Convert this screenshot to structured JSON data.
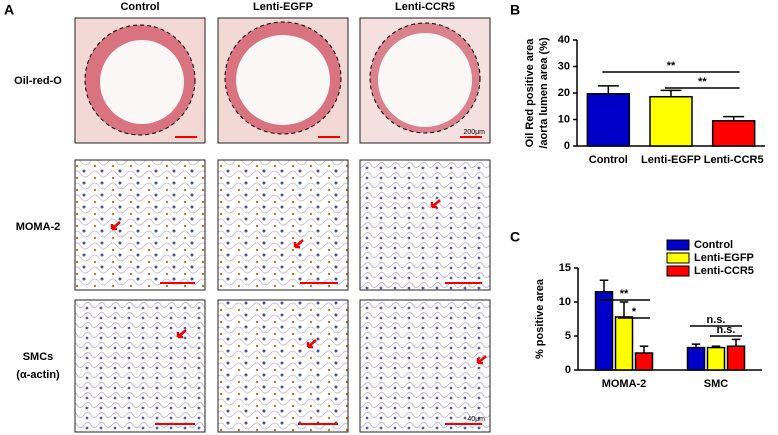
{
  "panel_labels": [
    "A",
    "B",
    "C"
  ],
  "image_grid": {
    "columns": [
      "Control",
      "Lenti-EGFP",
      "Lenti-CCR5"
    ],
    "rows": [
      [
        "Oil-red-O"
      ],
      [
        "MOMA-2"
      ],
      [
        "SMCs",
        "(α-actin)"
      ]
    ],
    "scale_labels": [
      "200μm",
      "40μm"
    ]
  },
  "chart_data": [
    {
      "type": "bar",
      "ylabel": [
        "Oil Red positive area",
        "/aorta lumen area (%)"
      ],
      "categories": [
        "Control",
        "Lenti-EGFP",
        "Lenti-CCR5"
      ],
      "values": [
        19.7,
        18.6,
        9.5
      ],
      "errors": [
        3.0,
        2.4,
        1.6
      ],
      "colors": [
        "#0000c8",
        "#ffff00",
        "#ff0000"
      ],
      "ylim": [
        0,
        40
      ],
      "yticks": [
        0,
        10,
        20,
        30,
        40
      ],
      "annotations": [
        "**",
        "**"
      ]
    },
    {
      "type": "grouped-bar",
      "ylabel": "% positive area",
      "categories": [
        "MOMA-2",
        "SMC"
      ],
      "series": [
        {
          "name": "Control",
          "color": "#0000c8",
          "values": [
            11.5,
            3.3
          ],
          "errors": [
            1.7,
            0.5
          ]
        },
        {
          "name": "Lenti-EGFP",
          "color": "#ffff00",
          "values": [
            7.8,
            3.3
          ],
          "errors": [
            2.2,
            0.2
          ]
        },
        {
          "name": "Lenti-CCR5",
          "color": "#ff0000",
          "values": [
            2.5,
            3.5
          ],
          "errors": [
            1.0,
            1.0
          ]
        }
      ],
      "ylim": [
        0,
        15
      ],
      "yticks": [
        0,
        5,
        10,
        15
      ],
      "annotations": [
        "**",
        "*",
        "n.s.",
        "n.s."
      ],
      "legend": "top-right"
    }
  ]
}
